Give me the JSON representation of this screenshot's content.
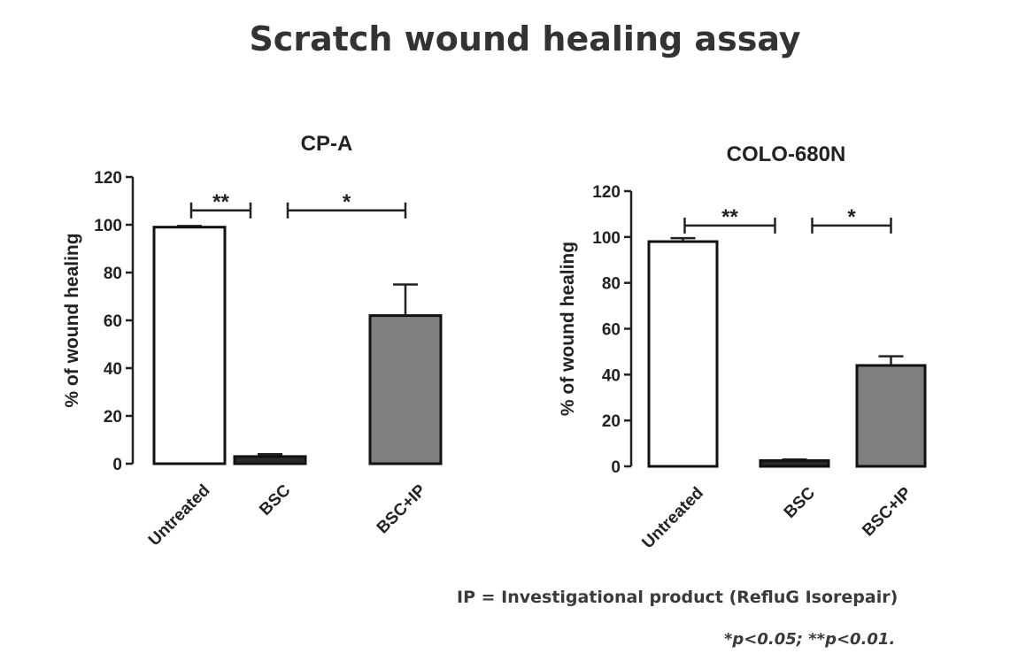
{
  "title": "Scratch wound healing assay",
  "footnote_ip": "IP = Investigational  product (RefluG Isorepair)",
  "footnote_p": "*p<0.05; **p<0.01.",
  "chart_data": [
    {
      "type": "bar",
      "title": "CP-A",
      "ylabel": "% of wound healing",
      "xlabel": "",
      "categories": [
        "Untreated",
        "BSC",
        "BSC+IP"
      ],
      "values": [
        99,
        3,
        62
      ],
      "errors": [
        0.5,
        1,
        13
      ],
      "bar_fill": [
        "#ffffff",
        "#2b2b2b",
        "#7f7f7f"
      ],
      "ylim": [
        0,
        120
      ],
      "yticks": [
        0,
        20,
        40,
        60,
        80,
        100,
        120
      ],
      "significance": [
        {
          "from": 0,
          "to": 1,
          "label": "**",
          "y": 106
        },
        {
          "from": 1,
          "to": 2,
          "label": "*",
          "y": 106
        }
      ],
      "grid": false
    },
    {
      "type": "bar",
      "title": "COLO-680N",
      "ylabel": "% of wound healing",
      "xlabel": "",
      "categories": [
        "Untreated",
        "BSC",
        "BSC+IP"
      ],
      "values": [
        98,
        2.5,
        44
      ],
      "errors": [
        1.5,
        0.5,
        4
      ],
      "bar_fill": [
        "#ffffff",
        "#2b2b2b",
        "#7f7f7f"
      ],
      "ylim": [
        0,
        120
      ],
      "yticks": [
        0,
        20,
        40,
        60,
        80,
        100,
        120
      ],
      "significance": [
        {
          "from": 0,
          "to": 1,
          "label": "**",
          "y": 105
        },
        {
          "from": 1,
          "to": 2,
          "label": "*",
          "y": 105
        }
      ],
      "grid": false
    }
  ]
}
